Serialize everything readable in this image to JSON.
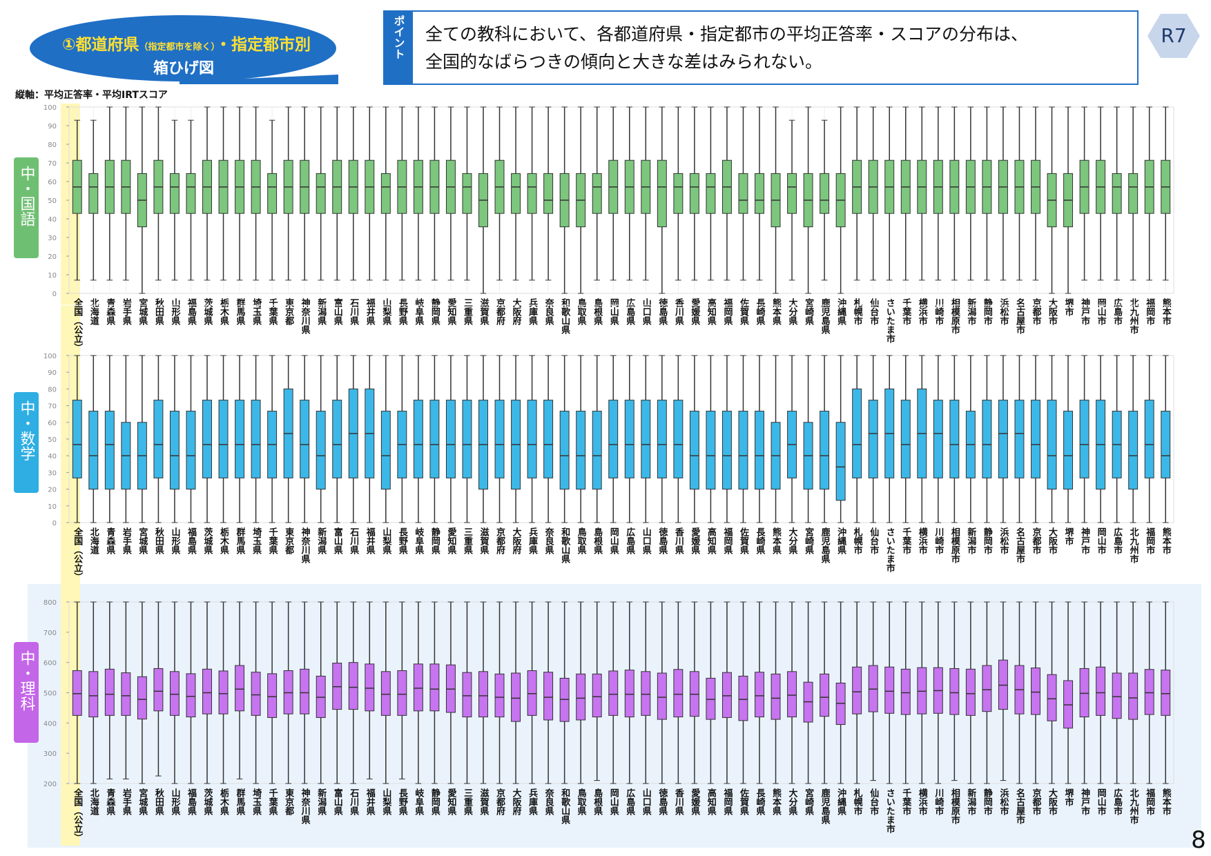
{
  "header": {
    "title_parts": [
      "①都道府県",
      "（指定都市を除く）",
      "・指定都市別"
    ],
    "title_line2": "箱ひげ図"
  },
  "point": {
    "label": "ポイント",
    "lines": [
      "全ての教科において、各都道府県・指定都市の平均正答率・スコアの分布は、",
      "全国的なばらつきの傾向と大きな差はみられない。"
    ]
  },
  "badge": "R7",
  "axis_note": "縦軸：平均正答率・平均IRTスコア",
  "page_number": "8",
  "chart_data": [
    {
      "type": "box",
      "subject": "中・国語",
      "color": "#7cc67e",
      "categories": [
        "全国（公立）",
        "北海道",
        "青森県",
        "岩手県",
        "宮城県",
        "秋田県",
        "山形県",
        "福島県",
        "茨城県",
        "栃木県",
        "群馬県",
        "埼玉県",
        "千葉県",
        "東京都",
        "神奈川県",
        "新潟県",
        "富山県",
        "石川県",
        "福井県",
        "山梨県",
        "長野県",
        "岐阜県",
        "静岡県",
        "愛知県",
        "三重県",
        "滋賀県",
        "京都府",
        "大阪府",
        "兵庫県",
        "奈良県",
        "和歌山県",
        "鳥取県",
        "島根県",
        "岡山県",
        "広島県",
        "山口県",
        "徳島県",
        "香川県",
        "愛媛県",
        "高知県",
        "福岡県",
        "佐賀県",
        "長崎県",
        "熊本県",
        "大分県",
        "宮崎県",
        "鹿児島県",
        "沖縄県",
        "札幌市",
        "仙台市",
        "さいたま市",
        "千葉市",
        "横浜市",
        "川崎市",
        "相模原市",
        "新潟市",
        "静岡市",
        "浜松市",
        "名古屋市",
        "京都市",
        "大阪市",
        "堺市",
        "神戸市",
        "岡山市",
        "広島市",
        "北九州市",
        "福岡市",
        "熊本市"
      ],
      "whislo": [
        7.1,
        7.1,
        7.1,
        7.1,
        0,
        7.1,
        7.1,
        7.1,
        7.1,
        7.1,
        7.1,
        7.1,
        7.1,
        7.1,
        7.1,
        7.1,
        7.1,
        7.1,
        7.1,
        7.1,
        7.1,
        7.1,
        7.1,
        7.1,
        7.1,
        0,
        7.1,
        7.1,
        7.1,
        7.1,
        0,
        0,
        7.1,
        7.1,
        7.1,
        7.1,
        0,
        7.1,
        7.1,
        7.1,
        7.1,
        7.1,
        7.1,
        0,
        7.1,
        0,
        7.1,
        0,
        7.1,
        7.1,
        7.1,
        7.1,
        7.1,
        7.1,
        7.1,
        7.1,
        7.1,
        7.1,
        7.1,
        7.1,
        0,
        0,
        7.1,
        7.1,
        7.1,
        7.1,
        7.1,
        7.1
      ],
      "q1": [
        42.9,
        42.9,
        42.9,
        42.9,
        35.7,
        42.9,
        42.9,
        42.9,
        42.9,
        42.9,
        42.9,
        42.9,
        42.9,
        42.9,
        42.9,
        42.9,
        42.9,
        42.9,
        42.9,
        42.9,
        42.9,
        42.9,
        42.9,
        42.9,
        42.9,
        35.7,
        42.9,
        42.9,
        42.9,
        42.9,
        35.7,
        35.7,
        42.9,
        42.9,
        42.9,
        42.9,
        35.7,
        42.9,
        42.9,
        42.9,
        42.9,
        42.9,
        42.9,
        35.7,
        42.9,
        35.7,
        42.9,
        35.7,
        42.9,
        42.9,
        42.9,
        42.9,
        42.9,
        42.9,
        42.9,
        42.9,
        42.9,
        42.9,
        42.9,
        42.9,
        35.7,
        35.7,
        42.9,
        42.9,
        42.9,
        42.9,
        42.9,
        42.9
      ],
      "med": [
        57.1,
        57.1,
        57.1,
        57.1,
        50,
        57.1,
        57.1,
        57.1,
        57.1,
        57.1,
        57.1,
        57.1,
        57.1,
        57.1,
        57.1,
        57.1,
        57.1,
        57.1,
        57.1,
        57.1,
        57.1,
        57.1,
        57.1,
        57.1,
        57.1,
        50,
        57.1,
        57.1,
        57.1,
        50,
        50,
        50,
        57.1,
        57.1,
        57.1,
        57.1,
        57.1,
        57.1,
        57.1,
        57.1,
        57.1,
        50,
        50,
        50,
        57.1,
        50,
        50,
        50,
        57.1,
        57.1,
        57.1,
        57.1,
        57.1,
        57.1,
        57.1,
        57.1,
        57.1,
        57.1,
        57.1,
        57.1,
        50,
        50,
        57.1,
        57.1,
        57.1,
        57.1,
        57.1,
        57.1
      ],
      "q3": [
        71.4,
        64.3,
        71.4,
        71.4,
        64.3,
        71.4,
        64.3,
        64.3,
        71.4,
        71.4,
        71.4,
        71.4,
        64.3,
        71.4,
        71.4,
        64.3,
        71.4,
        71.4,
        71.4,
        64.3,
        71.4,
        71.4,
        71.4,
        71.4,
        64.3,
        64.3,
        71.4,
        64.3,
        64.3,
        64.3,
        64.3,
        64.3,
        64.3,
        71.4,
        71.4,
        71.4,
        71.4,
        64.3,
        64.3,
        64.3,
        71.4,
        64.3,
        64.3,
        64.3,
        64.3,
        64.3,
        64.3,
        64.3,
        71.4,
        71.4,
        71.4,
        71.4,
        71.4,
        71.4,
        71.4,
        71.4,
        71.4,
        71.4,
        71.4,
        71.4,
        64.3,
        64.3,
        71.4,
        71.4,
        64.3,
        64.3,
        71.4,
        71.4
      ],
      "whishi": [
        92.9,
        92.9,
        100,
        100,
        100,
        100,
        92.9,
        92.9,
        100,
        100,
        100,
        100,
        92.9,
        100,
        100,
        100,
        100,
        100,
        100,
        100,
        100,
        100,
        100,
        100,
        100,
        100,
        100,
        100,
        100,
        100,
        100,
        100,
        100,
        100,
        100,
        100,
        100,
        100,
        100,
        100,
        100,
        100,
        100,
        100,
        92.9,
        100,
        92.9,
        100,
        100,
        100,
        100,
        100,
        100,
        100,
        100,
        100,
        100,
        100,
        100,
        100,
        100,
        100,
        100,
        100,
        100,
        100,
        100,
        100
      ],
      "ylim": [
        0,
        100
      ],
      "yticks": [
        0,
        10,
        20,
        30,
        40,
        50,
        60,
        70,
        80,
        90,
        100
      ]
    },
    {
      "type": "box",
      "subject": "中・数学",
      "color": "#3cb8e8",
      "categories": [
        "全国（公立）",
        "北海道",
        "青森県",
        "岩手県",
        "宮城県",
        "秋田県",
        "山形県",
        "福島県",
        "茨城県",
        "栃木県",
        "群馬県",
        "埼玉県",
        "千葉県",
        "東京都",
        "神奈川県",
        "新潟県",
        "富山県",
        "石川県",
        "福井県",
        "山梨県",
        "長野県",
        "岐阜県",
        "静岡県",
        "愛知県",
        "三重県",
        "滋賀県",
        "京都府",
        "大阪府",
        "兵庫県",
        "奈良県",
        "和歌山県",
        "鳥取県",
        "島根県",
        "岡山県",
        "広島県",
        "山口県",
        "徳島県",
        "香川県",
        "愛媛県",
        "高知県",
        "福岡県",
        "佐賀県",
        "長崎県",
        "熊本県",
        "大分県",
        "宮崎県",
        "鹿児島県",
        "沖縄県",
        "札幌市",
        "仙台市",
        "さいたま市",
        "千葉市",
        "横浜市",
        "川崎市",
        "相模原市",
        "新潟市",
        "静岡市",
        "浜松市",
        "名古屋市",
        "京都市",
        "大阪市",
        "堺市",
        "神戸市",
        "岡山市",
        "広島市",
        "北九州市",
        "福岡市",
        "熊本市"
      ],
      "whislo": [
        0,
        0,
        0,
        0,
        0,
        0,
        0,
        0,
        0,
        0,
        0,
        0,
        0,
        0,
        0,
        0,
        0,
        0,
        0,
        0,
        0,
        0,
        0,
        0,
        0,
        0,
        0,
        0,
        0,
        0,
        0,
        0,
        0,
        0,
        0,
        0,
        0,
        0,
        0,
        0,
        0,
        0,
        0,
        0,
        0,
        0,
        0,
        0,
        0,
        0,
        0,
        0,
        0,
        0,
        0,
        0,
        0,
        0,
        0,
        0,
        0,
        0,
        0,
        0,
        0,
        0,
        0,
        0
      ],
      "q1": [
        26.7,
        20,
        20,
        20,
        20,
        26.7,
        20,
        20,
        26.7,
        26.7,
        26.7,
        26.7,
        26.7,
        26.7,
        26.7,
        20,
        26.7,
        26.7,
        26.7,
        20,
        26.7,
        26.7,
        26.7,
        26.7,
        26.7,
        20,
        26.7,
        20,
        26.7,
        26.7,
        20,
        20,
        20,
        26.7,
        26.7,
        26.7,
        26.7,
        26.7,
        20,
        20,
        20,
        20,
        20,
        20,
        26.7,
        20,
        20,
        13.3,
        26.7,
        26.7,
        26.7,
        26.7,
        26.7,
        26.7,
        26.7,
        26.7,
        26.7,
        26.7,
        26.7,
        26.7,
        20,
        20,
        26.7,
        20,
        26.7,
        20,
        26.7,
        26.7
      ],
      "med": [
        46.7,
        40,
        46.7,
        40,
        40,
        46.7,
        40,
        40,
        46.7,
        46.7,
        46.7,
        46.7,
        46.7,
        53.3,
        46.7,
        40,
        46.7,
        53.3,
        53.3,
        40,
        46.7,
        46.7,
        46.7,
        46.7,
        46.7,
        46.7,
        46.7,
        46.7,
        46.7,
        46.7,
        40,
        40,
        40,
        46.7,
        46.7,
        46.7,
        46.7,
        46.7,
        40,
        40,
        40,
        40,
        40,
        40,
        46.7,
        40,
        40,
        33.3,
        46.7,
        53.3,
        53.3,
        46.7,
        53.3,
        53.3,
        46.7,
        46.7,
        46.7,
        53.3,
        53.3,
        46.7,
        40,
        40,
        46.7,
        46.7,
        46.7,
        40,
        46.7,
        40
      ],
      "q3": [
        73.3,
        66.7,
        66.7,
        60,
        60,
        73.3,
        66.7,
        66.7,
        73.3,
        73.3,
        73.3,
        73.3,
        66.7,
        80,
        73.3,
        66.7,
        73.3,
        80,
        80,
        66.7,
        66.7,
        73.3,
        73.3,
        73.3,
        73.3,
        73.3,
        73.3,
        73.3,
        73.3,
        73.3,
        66.7,
        66.7,
        66.7,
        73.3,
        73.3,
        73.3,
        73.3,
        73.3,
        66.7,
        66.7,
        66.7,
        66.7,
        66.7,
        60,
        66.7,
        60,
        66.7,
        60,
        80,
        73.3,
        80,
        73.3,
        80,
        73.3,
        73.3,
        66.7,
        73.3,
        73.3,
        73.3,
        73.3,
        73.3,
        66.7,
        73.3,
        73.3,
        66.7,
        66.7,
        73.3,
        66.7
      ],
      "whishi": [
        100,
        100,
        100,
        100,
        100,
        100,
        100,
        100,
        100,
        100,
        100,
        100,
        100,
        100,
        100,
        100,
        100,
        100,
        100,
        100,
        100,
        100,
        100,
        100,
        100,
        100,
        100,
        100,
        100,
        100,
        100,
        100,
        100,
        100,
        100,
        100,
        100,
        100,
        100,
        100,
        100,
        100,
        100,
        100,
        100,
        100,
        100,
        100,
        100,
        100,
        100,
        100,
        100,
        100,
        100,
        100,
        100,
        100,
        100,
        100,
        100,
        100,
        100,
        100,
        100,
        100,
        100,
        100
      ],
      "ylim": [
        0,
        100
      ],
      "yticks": [
        0,
        10,
        20,
        30,
        40,
        50,
        60,
        70,
        80,
        90,
        100
      ]
    },
    {
      "type": "box",
      "subject": "中・理科",
      "color": "#c774f0",
      "categories": [
        "全国（公立）",
        "北海道",
        "青森県",
        "岩手県",
        "宮城県",
        "秋田県",
        "山形県",
        "福島県",
        "茨城県",
        "栃木県",
        "群馬県",
        "埼玉県",
        "千葉県",
        "東京都",
        "神奈川県",
        "新潟県",
        "富山県",
        "石川県",
        "福井県",
        "山梨県",
        "長野県",
        "岐阜県",
        "静岡県",
        "愛知県",
        "三重県",
        "滋賀県",
        "京都府",
        "大阪府",
        "兵庫県",
        "奈良県",
        "和歌山県",
        "鳥取県",
        "島根県",
        "岡山県",
        "広島県",
        "山口県",
        "徳島県",
        "香川県",
        "愛媛県",
        "高知県",
        "福岡県",
        "佐賀県",
        "長崎県",
        "熊本県",
        "大分県",
        "宮崎県",
        "鹿児島県",
        "沖縄県",
        "札幌市",
        "仙台市",
        "さいたま市",
        "千葉市",
        "横浜市",
        "川崎市",
        "相模原市",
        "新潟市",
        "静岡市",
        "浜松市",
        "名古屋市",
        "京都市",
        "大阪市",
        "堺市",
        "神戸市",
        "岡山市",
        "広島市",
        "北九州市",
        "福岡市",
        "熊本市"
      ],
      "whislo": [
        200,
        200,
        215,
        215,
        200,
        225,
        200,
        200,
        200,
        200,
        215,
        200,
        200,
        200,
        200,
        200,
        200,
        200,
        215,
        200,
        215,
        200,
        200,
        200,
        200,
        200,
        200,
        200,
        200,
        200,
        200,
        200,
        210,
        200,
        200,
        200,
        200,
        200,
        200,
        200,
        200,
        200,
        200,
        200,
        200,
        200,
        200,
        200,
        200,
        210,
        200,
        200,
        200,
        200,
        210,
        200,
        200,
        210,
        200,
        200,
        200,
        200,
        200,
        200,
        200,
        200,
        200,
        200
      ],
      "q1": [
        425,
        420,
        425,
        425,
        413,
        440,
        425,
        420,
        430,
        430,
        440,
        425,
        418,
        430,
        430,
        418,
        445,
        445,
        440,
        425,
        425,
        440,
        440,
        435,
        420,
        420,
        420,
        405,
        425,
        410,
        405,
        410,
        420,
        425,
        420,
        425,
        412,
        420,
        422,
        412,
        418,
        408,
        420,
        412,
        420,
        403,
        422,
        395,
        430,
        437,
        432,
        428,
        430,
        432,
        428,
        425,
        438,
        445,
        430,
        428,
        407,
        383,
        420,
        425,
        415,
        412,
        428,
        425
      ],
      "med": [
        497,
        490,
        495,
        490,
        478,
        505,
        495,
        488,
        500,
        497,
        512,
        493,
        487,
        500,
        500,
        485,
        520,
        518,
        515,
        495,
        495,
        515,
        512,
        512,
        490,
        490,
        485,
        482,
        497,
        485,
        478,
        482,
        487,
        495,
        495,
        495,
        485,
        495,
        495,
        478,
        490,
        478,
        490,
        482,
        492,
        470,
        485,
        465,
        503,
        512,
        505,
        500,
        505,
        507,
        500,
        497,
        510,
        525,
        510,
        502,
        480,
        460,
        498,
        500,
        487,
        483,
        500,
        497
      ],
      "q3": [
        573,
        570,
        578,
        566,
        553,
        580,
        570,
        563,
        578,
        572,
        590,
        568,
        563,
        573,
        578,
        555,
        598,
        600,
        595,
        570,
        573,
        595,
        595,
        592,
        567,
        570,
        562,
        565,
        573,
        568,
        548,
        562,
        562,
        572,
        575,
        570,
        565,
        577,
        570,
        548,
        567,
        555,
        568,
        562,
        570,
        535,
        562,
        532,
        585,
        590,
        585,
        578,
        583,
        583,
        580,
        578,
        590,
        608,
        590,
        582,
        560,
        540,
        580,
        585,
        565,
        565,
        577,
        575
      ],
      "whishi": [
        800,
        800,
        800,
        800,
        800,
        800,
        800,
        800,
        800,
        800,
        800,
        800,
        800,
        800,
        800,
        800,
        800,
        800,
        800,
        800,
        800,
        800,
        800,
        800,
        800,
        800,
        800,
        800,
        800,
        800,
        800,
        800,
        800,
        800,
        800,
        800,
        800,
        800,
        800,
        800,
        800,
        800,
        800,
        800,
        800,
        800,
        800,
        800,
        800,
        800,
        800,
        800,
        800,
        800,
        800,
        800,
        800,
        800,
        800,
        800,
        800,
        800,
        800,
        800,
        800,
        800,
        800,
        800
      ],
      "ylim": [
        200,
        800
      ],
      "yticks": [
        200,
        300,
        400,
        500,
        600,
        700,
        800
      ]
    }
  ]
}
